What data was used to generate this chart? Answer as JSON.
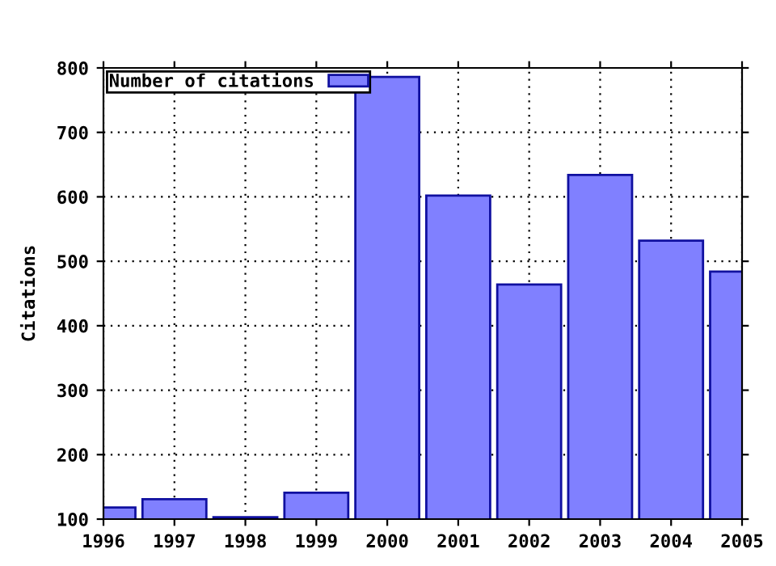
{
  "chart_data": {
    "type": "bar",
    "ylabel": "Citations",
    "x": [
      1996,
      1997,
      1998,
      1999,
      2000,
      2001,
      2002,
      2003,
      2004,
      2005
    ],
    "series": [
      {
        "name": "Number of citations",
        "color": "#8080ff",
        "values": [
          118,
          131,
          103,
          141,
          786,
          602,
          464,
          634,
          532,
          484
        ]
      }
    ],
    "xlim": [
      1996,
      2005
    ],
    "xticks": [
      1996,
      1997,
      1998,
      1999,
      2000,
      2001,
      2002,
      2003,
      2004,
      2005
    ],
    "ylim": [
      100,
      800
    ],
    "yticks": [
      100,
      200,
      300,
      400,
      500,
      600,
      700,
      800
    ],
    "grid": true,
    "legend": "top left"
  }
}
